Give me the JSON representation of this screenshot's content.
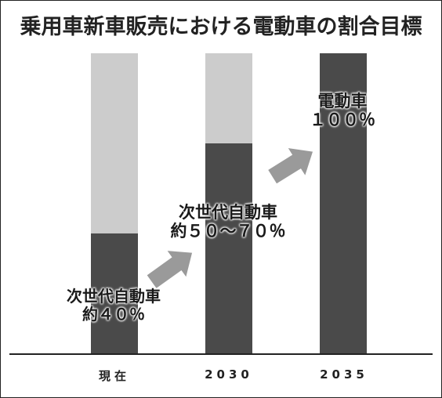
{
  "chart_data": {
    "type": "bar",
    "stacked": true,
    "title": "乗用車新車販売における電動車の割合目標",
    "categories": [
      "現在",
      "2030",
      "2035"
    ],
    "series": [
      {
        "values": [
          40,
          70,
          100
        ],
        "color": "#4a4a4a"
      },
      {
        "values": [
          60,
          30,
          0
        ],
        "color": "#cccccc"
      }
    ],
    "ylim": [
      0,
      100
    ],
    "grid": false,
    "annotations": [
      {
        "line1": "次世代自動車",
        "line2": "約４０％"
      },
      {
        "line1": "次世代自動車",
        "line2": "約５０～７０％"
      },
      {
        "line1": "電動車",
        "line2": "１００％"
      }
    ],
    "arrow_color": "#9a9a9a"
  }
}
